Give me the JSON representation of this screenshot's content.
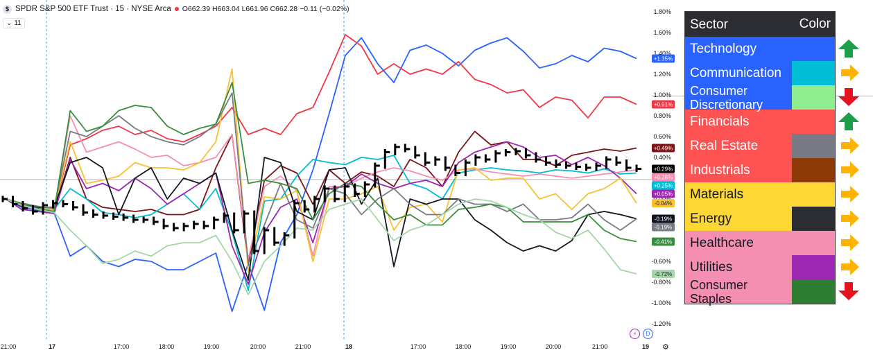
{
  "header": {
    "symbol_badge": "$",
    "title": "SPDR S&P 500 ETF Trust · 15 · NYSE Arca",
    "ohlc": "O662.39 H663.04 L661.96 C662.28 −0.11 (−0.02%)",
    "indicator_count": "11"
  },
  "icons": {
    "lightning": "⚡",
    "d": "D",
    "gear": "⚙"
  },
  "chart_data": {
    "type": "line",
    "title": "",
    "x_tick_labels": [
      "21:00",
      "17",
      "17:00",
      "18:00",
      "19:00",
      "20:00",
      "21:00",
      "18",
      "17:00",
      "18:00",
      "19:00",
      "20:00",
      "21:00",
      "19"
    ],
    "y_ticks": [
      "1.80%",
      "1.60%",
      "1.40%",
      "1.20%",
      "1.00%",
      "0.80%",
      "0.60%",
      "0.40%",
      "0.20%",
      "0.00%",
      "-0.20%",
      "-0.40%",
      "-0.60%",
      "-0.80%",
      "-1.00%",
      "-1.20%"
    ],
    "ylim": [
      -1.2,
      1.8
    ],
    "grid": false,
    "series": [
      {
        "color": "#2962ff",
        "end_label": "+1.35%",
        "values": [
          0.0,
          -0.08,
          -0.11,
          -0.13,
          -0.55,
          -0.45,
          -0.6,
          -0.65,
          -0.58,
          -0.6,
          -0.68,
          -0.68,
          -0.6,
          -0.52,
          -1.08,
          -0.62,
          -1.07,
          -0.42,
          -0.15,
          0.28,
          0.82,
          1.38,
          1.55,
          1.3,
          1.12,
          1.43,
          1.48,
          1.4,
          1.28,
          1.43,
          1.5,
          1.55,
          1.42,
          1.26,
          1.3,
          1.38,
          1.32,
          1.45,
          1.42,
          1.35
        ]
      },
      {
        "color": "#f23645",
        "end_label": "+0.91%",
        "values": [
          0.0,
          -0.06,
          -0.1,
          -0.12,
          0.52,
          0.58,
          0.66,
          0.7,
          0.62,
          0.66,
          0.58,
          0.55,
          0.62,
          0.7,
          0.88,
          0.62,
          0.68,
          0.62,
          0.82,
          0.88,
          1.22,
          1.58,
          1.47,
          1.2,
          1.3,
          1.2,
          1.25,
          1.2,
          1.32,
          1.15,
          1.1,
          1.02,
          1.05,
          0.88,
          0.98,
          0.95,
          0.78,
          0.98,
          0.98,
          0.91
        ]
      },
      {
        "color": "#7b1416",
        "end_label": "+0.49%",
        "values": [
          0.0,
          -0.07,
          -0.09,
          -0.12,
          0.4,
          0.0,
          -0.08,
          -0.1,
          -0.12,
          -0.1,
          -0.15,
          -0.15,
          -0.1,
          0.3,
          0.62,
          -0.62,
          0.18,
          0.32,
          0.25,
          -0.05,
          0.28,
          0.15,
          0.26,
          0.22,
          0.12,
          0.38,
          0.3,
          0.12,
          0.45,
          0.65,
          0.52,
          0.55,
          0.38,
          0.38,
          0.32,
          0.42,
          0.45,
          0.48,
          0.46,
          0.49
        ]
      },
      {
        "color": "#00bcd4",
        "end_label": "+0.25%",
        "values": [
          0.0,
          -0.06,
          -0.08,
          -0.1,
          0.1,
          0.0,
          -0.13,
          -0.15,
          -0.18,
          -0.15,
          -0.05,
          0.05,
          -0.1,
          0.1,
          -0.32,
          -0.88,
          -0.02,
          0.0,
          0.22,
          0.38,
          0.35,
          0.33,
          0.4,
          0.38,
          0.42,
          0.15,
          0.1,
          0.0,
          0.25,
          0.28,
          0.3,
          0.28,
          0.27,
          0.25,
          0.28,
          0.27,
          0.25,
          0.29,
          0.24,
          0.25
        ]
      },
      {
        "color": "#f48fb1",
        "end_label": "+0.28%",
        "values": [
          0.0,
          -0.04,
          -0.09,
          -0.11,
          0.8,
          0.45,
          0.5,
          0.55,
          0.48,
          0.4,
          0.42,
          0.32,
          0.35,
          0.4,
          0.62,
          -0.58,
          0.12,
          0.22,
          0.08,
          -0.55,
          0.12,
          0.12,
          0.2,
          0.26,
          0.3,
          0.27,
          0.22,
          0.18,
          0.28,
          0.29,
          0.26,
          0.24,
          0.22,
          0.24,
          0.22,
          0.2,
          0.22,
          0.24,
          0.26,
          0.28
        ]
      },
      {
        "color": "#9c27b0",
        "end_label": "+0.05%",
        "values": [
          0.0,
          -0.1,
          -0.12,
          -0.14,
          0.38,
          0.1,
          0.15,
          0.08,
          0.2,
          0.1,
          -0.05,
          0.05,
          0.15,
          0.25,
          -0.45,
          -0.82,
          -0.32,
          -0.08,
          0.0,
          -0.42,
          0.1,
          0.12,
          0.24,
          0.15,
          0.1,
          0.15,
          0.18,
          0.12,
          0.35,
          0.45,
          0.5,
          0.55,
          0.5,
          0.4,
          0.42,
          0.33,
          0.4,
          0.32,
          0.2,
          0.05
        ]
      },
      {
        "color": "#f9c031",
        "end_label": "-0.04%",
        "values": [
          0.0,
          -0.06,
          -0.09,
          -0.1,
          0.55,
          0.15,
          0.18,
          0.22,
          0.35,
          0.3,
          0.3,
          0.28,
          0.35,
          0.55,
          1.25,
          -0.7,
          0.02,
          0.0,
          0.08,
          -0.6,
          0.0,
          0.0,
          0.05,
          0.12,
          -0.3,
          -0.08,
          -0.05,
          -0.22,
          0.28,
          0.3,
          0.18,
          0.2,
          0.2,
          0.0,
          0.05,
          -0.1,
          0.05,
          0.1,
          0.2,
          -0.04
        ]
      },
      {
        "color": "#131722",
        "end_label": "-0.19%",
        "values": [
          0.0,
          -0.05,
          -0.08,
          -0.08,
          0.35,
          0.4,
          0.3,
          -0.15,
          0.2,
          0.3,
          0.0,
          0.2,
          0.15,
          0.25,
          -0.3,
          -0.78,
          0.4,
          0.35,
          -0.12,
          -0.2,
          0.28,
          0.3,
          -0.05,
          0.2,
          -0.65,
          0.0,
          -0.05,
          0.0,
          0.0,
          -0.2,
          -0.3,
          -0.42,
          -0.5,
          -0.45,
          -0.5,
          -0.4,
          -0.15,
          -0.12,
          -0.15,
          -0.19
        ]
      },
      {
        "color": "#787b86",
        "end_label": "-0.19%",
        "values": [
          0.0,
          -0.04,
          -0.07,
          -0.09,
          0.65,
          0.6,
          0.7,
          0.8,
          0.68,
          0.6,
          0.55,
          0.52,
          0.6,
          0.72,
          1.02,
          -0.62,
          -0.25,
          0.15,
          -0.2,
          -0.28,
          0.1,
          0.05,
          -0.15,
          0.0,
          0.1,
          -0.05,
          -0.15,
          -0.15,
          0.0,
          -0.05,
          -0.05,
          -0.12,
          -0.05,
          -0.2,
          -0.2,
          -0.18,
          -0.05,
          -0.2,
          -0.3,
          -0.19
        ]
      },
      {
        "color": "#388e3c",
        "end_label": "-0.41%",
        "values": [
          0.0,
          -0.05,
          -0.09,
          -0.12,
          0.85,
          0.65,
          0.7,
          0.85,
          0.9,
          0.88,
          0.7,
          0.62,
          0.68,
          0.72,
          1.12,
          0.15,
          0.18,
          0.15,
          0.1,
          -0.2,
          0.05,
          0.15,
          0.12,
          -0.05,
          -0.2,
          -0.15,
          -0.25,
          -0.25,
          -0.1,
          -0.08,
          -0.05,
          -0.08,
          -0.22,
          -0.22,
          -0.22,
          -0.22,
          -0.15,
          -0.3,
          -0.38,
          -0.41
        ]
      },
      {
        "color": "#a5d6a7",
        "end_label": "-0.72%",
        "values": [
          0.0,
          -0.06,
          -0.1,
          -0.13,
          -0.3,
          -0.45,
          -0.62,
          -0.58,
          -0.5,
          -0.55,
          -0.45,
          -0.42,
          -0.42,
          -0.35,
          -0.6,
          -0.92,
          -0.6,
          -0.45,
          -0.28,
          -0.3,
          -0.1,
          -0.05,
          0.0,
          -0.2,
          -0.4,
          -0.3,
          -0.25,
          -0.15,
          -0.05,
          0.0,
          -0.02,
          -0.08,
          -0.15,
          -0.2,
          -0.32,
          -0.38,
          -0.3,
          -0.48,
          -0.68,
          -0.72
        ]
      }
    ],
    "price_series": {
      "color": "#000000",
      "end_label": "+0.29%",
      "values": [
        0.0,
        -0.05,
        -0.09,
        -0.12,
        -0.06,
        -0.04,
        -0.05,
        -0.08,
        -0.13,
        -0.15,
        -0.16,
        -0.17,
        -0.18,
        -0.2,
        -0.2,
        -0.22,
        -0.26,
        -0.28,
        -0.26,
        -0.24,
        -0.26,
        -0.2,
        -0.16,
        -0.3,
        -0.14,
        -0.5,
        -0.3,
        -0.42,
        -0.35,
        -0.04,
        -0.1,
        0.0,
        0.1,
        0.0,
        0.12,
        0.05,
        0.14,
        0.32,
        0.45,
        0.5,
        0.48,
        0.42,
        0.35,
        0.38,
        0.3,
        0.25,
        0.35,
        0.4,
        0.38,
        0.44,
        0.45,
        0.46,
        0.42,
        0.38,
        0.35,
        0.33,
        0.32,
        0.31,
        0.3,
        0.32,
        0.38,
        0.35,
        0.3,
        0.29
      ]
    }
  },
  "legend": {
    "header": {
      "sector": "Sector",
      "color": "Color"
    },
    "rows": [
      {
        "name": "Technology",
        "bg": "#2962ff",
        "swatch": "#2962ff",
        "text": "#ffffff",
        "arrow": "up"
      },
      {
        "name": "Communication",
        "bg": "#2962ff",
        "swatch": "#00bcd4",
        "text": "#ffffff",
        "arrow": "right"
      },
      {
        "name": "Consumer Discretionary",
        "bg": "#2962ff",
        "swatch": "#90ee90",
        "text": "#ffffff",
        "arrow": "down"
      },
      {
        "name": "Financials",
        "bg": "#ff5252",
        "swatch": "#ff5252",
        "text": "#ffffff",
        "arrow": "up"
      },
      {
        "name": "Real Estate",
        "bg": "#ff5252",
        "swatch": "#787b86",
        "text": "#ffffff",
        "arrow": "right"
      },
      {
        "name": "Industrials",
        "bg": "#ff5252",
        "swatch": "#8d3a08",
        "text": "#ffffff",
        "arrow": "right"
      },
      {
        "name": "Materials",
        "bg": "#fdd835",
        "swatch": "#fdd835",
        "text": "#131722",
        "arrow": "right"
      },
      {
        "name": "Energy",
        "bg": "#fdd835",
        "swatch": "#2b2d33",
        "text": "#131722",
        "arrow": "right"
      },
      {
        "name": "Healthcare",
        "bg": "#f48fb1",
        "swatch": "#f48fb1",
        "text": "#131722",
        "arrow": "right"
      },
      {
        "name": "Utilities",
        "bg": "#f48fb1",
        "swatch": "#9c27b0",
        "text": "#131722",
        "arrow": "right"
      },
      {
        "name": "Consumer Staples",
        "bg": "#f48fb1",
        "swatch": "#2e7d32",
        "text": "#131722",
        "arrow": "down"
      }
    ],
    "arrow_colors": {
      "up": "#1e9e4a",
      "right": "#ffb300",
      "down": "#e6141f"
    }
  }
}
